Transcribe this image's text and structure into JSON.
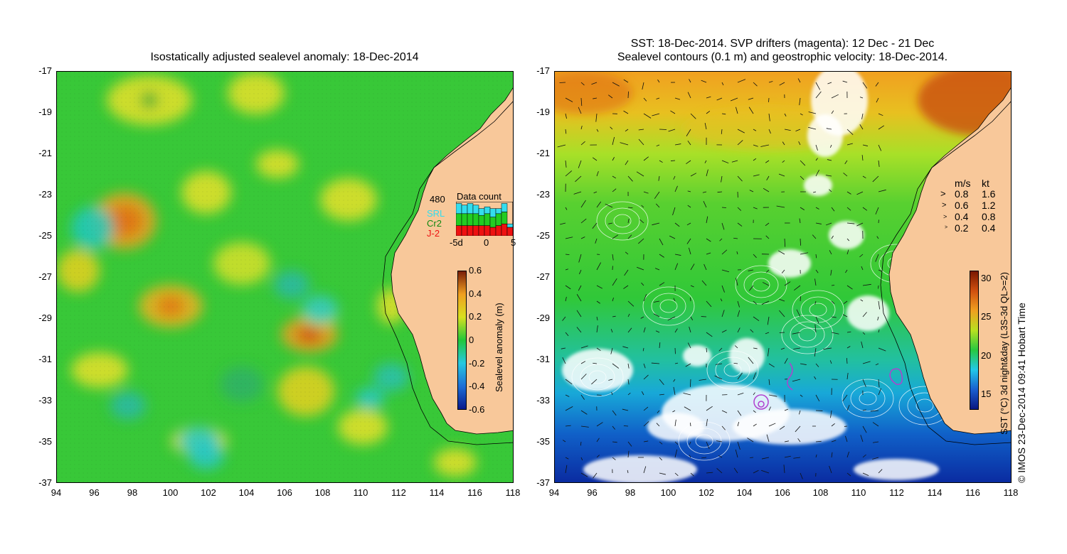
{
  "left_map": {
    "title": "Isostatically adjusted sealevel anomaly: 18-Dec-2014",
    "y_ticks": [
      "-17",
      "-19",
      "-21",
      "-23",
      "-25",
      "-27",
      "-29",
      "-31",
      "-33",
      "-35",
      "-37"
    ],
    "x_ticks": [
      "94",
      "96",
      "98",
      "100",
      "102",
      "104",
      "106",
      "108",
      "110",
      "112",
      "114",
      "116",
      "118"
    ],
    "colorbar": {
      "label": "Sealevel anomaly (m)",
      "ticks": [
        "0.6",
        "0.4",
        "0.2",
        "0",
        "-0.2",
        "-0.4",
        "-0.6"
      ],
      "range": [
        -0.6,
        0.6
      ],
      "colors": [
        "#0b1a8c",
        "#1e6fd6",
        "#28c8e0",
        "#22c73a",
        "#d8e020",
        "#f0a020",
        "#7a1e08"
      ]
    },
    "data_count": {
      "title": "Data count",
      "max_label": "480",
      "x_ticks": [
        "-5d",
        "0",
        "5"
      ],
      "satellites": [
        {
          "name": "SRL",
          "color": "#33ddee"
        },
        {
          "name": "Cr2",
          "color": "#22cc22"
        },
        {
          "name": "J-2",
          "color": "#ee1111"
        }
      ],
      "bars": [
        {
          "day": -5,
          "srl": 0.3,
          "cr2": 0.35,
          "j2": 0.3
        },
        {
          "day": -4,
          "srl": 0.25,
          "cr2": 0.35,
          "j2": 0.3
        },
        {
          "day": -3,
          "srl": 0.3,
          "cr2": 0.35,
          "j2": 0.3
        },
        {
          "day": -2,
          "srl": 0.25,
          "cr2": 0.35,
          "j2": 0.3
        },
        {
          "day": -1,
          "srl": 0.2,
          "cr2": 0.3,
          "j2": 0.3
        },
        {
          "day": 0,
          "srl": 0.2,
          "cr2": 0.35,
          "j2": 0.3
        },
        {
          "day": 1,
          "srl": 0.25,
          "cr2": 0.3,
          "j2": 0.25
        },
        {
          "day": 2,
          "srl": 0.15,
          "cr2": 0.35,
          "j2": 0.3
        },
        {
          "day": 3,
          "srl": 0.25,
          "cr2": 0.35,
          "j2": 0.35
        },
        {
          "day": 4,
          "srl": 0.1,
          "cr2": 0.0,
          "j2": 0.25
        }
      ]
    }
  },
  "right_map": {
    "title_line1": "SST: 18-Dec-2014. SVP drifters (magenta): 12 Dec - 21 Dec",
    "title_line2": "Sealevel contours (0.1 m) and geostrophic velocity: 18-Dec-2014.",
    "y_ticks": [
      "-17",
      "-19",
      "-21",
      "-23",
      "-25",
      "-27",
      "-29",
      "-31",
      "-33",
      "-35",
      "-37"
    ],
    "x_ticks": [
      "94",
      "96",
      "98",
      "100",
      "102",
      "104",
      "106",
      "108",
      "110",
      "112",
      "114",
      "116",
      "118"
    ],
    "velocity_legend": {
      "header_ms": "m/s",
      "header_kt": "kt",
      "rows": [
        {
          "ms": "0.8",
          "kt": "1.6"
        },
        {
          "ms": "0.6",
          "kt": "1.2"
        },
        {
          "ms": "0.4",
          "kt": "0.8"
        },
        {
          "ms": "0.2",
          "kt": "0.4"
        }
      ]
    },
    "colorbar": {
      "label": "SST (°C) 3d night&day (L3S-3d QL>=2)",
      "ticks": [
        "30",
        "25",
        "20",
        "15"
      ],
      "range": [
        13,
        31
      ],
      "colors": [
        "#0a1680",
        "#1a5fd0",
        "#22c8e8",
        "#28c840",
        "#b8e020",
        "#f0a020",
        "#d05010",
        "#7a1800"
      ]
    }
  },
  "credit": "© IMOS 23-Dec-2014 09:41 Hobart Time"
}
